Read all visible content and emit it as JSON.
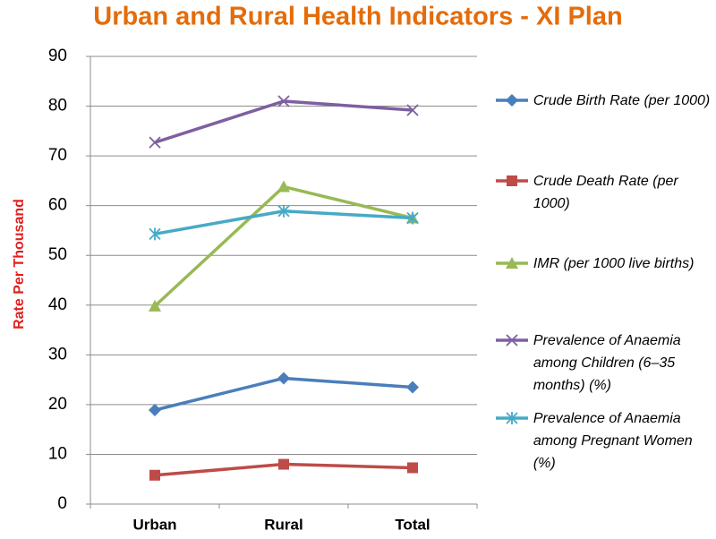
{
  "chart_data": {
    "type": "line",
    "title": "Urban and Rural Health Indicators - XI Plan",
    "y_label": "Rate Per Thousand",
    "categories": [
      "Urban",
      "Rural",
      "Total"
    ],
    "ylim": [
      0,
      90
    ],
    "yticks": [
      0,
      10,
      20,
      30,
      40,
      50,
      60,
      70,
      80,
      90
    ],
    "grid": true,
    "series": [
      {
        "name": "Crude Birth Rate (per 1000)",
        "color": "#4a7ebb",
        "marker": "diamond",
        "values": [
          18.9,
          25.3,
          23.5
        ]
      },
      {
        "name": "Crude Death Rate (per 1000)",
        "color": "#be4b48",
        "marker": "square",
        "values": [
          5.8,
          8.0,
          7.3
        ]
      },
      {
        "name": "IMR (per 1000 live births)",
        "color": "#98b954",
        "marker": "triangle",
        "values": [
          39.8,
          63.8,
          57.5
        ]
      },
      {
        "name": "Prevalence of Anaemia among Children (6–35 months) (%)",
        "color": "#7d60a0",
        "marker": "x",
        "values": [
          72.7,
          81.0,
          79.2
        ]
      },
      {
        "name": "Prevalence of Anaemia among Pregnant Women (%)",
        "color": "#46aac5",
        "marker": "star",
        "values": [
          54.3,
          58.9,
          57.5
        ]
      }
    ]
  }
}
